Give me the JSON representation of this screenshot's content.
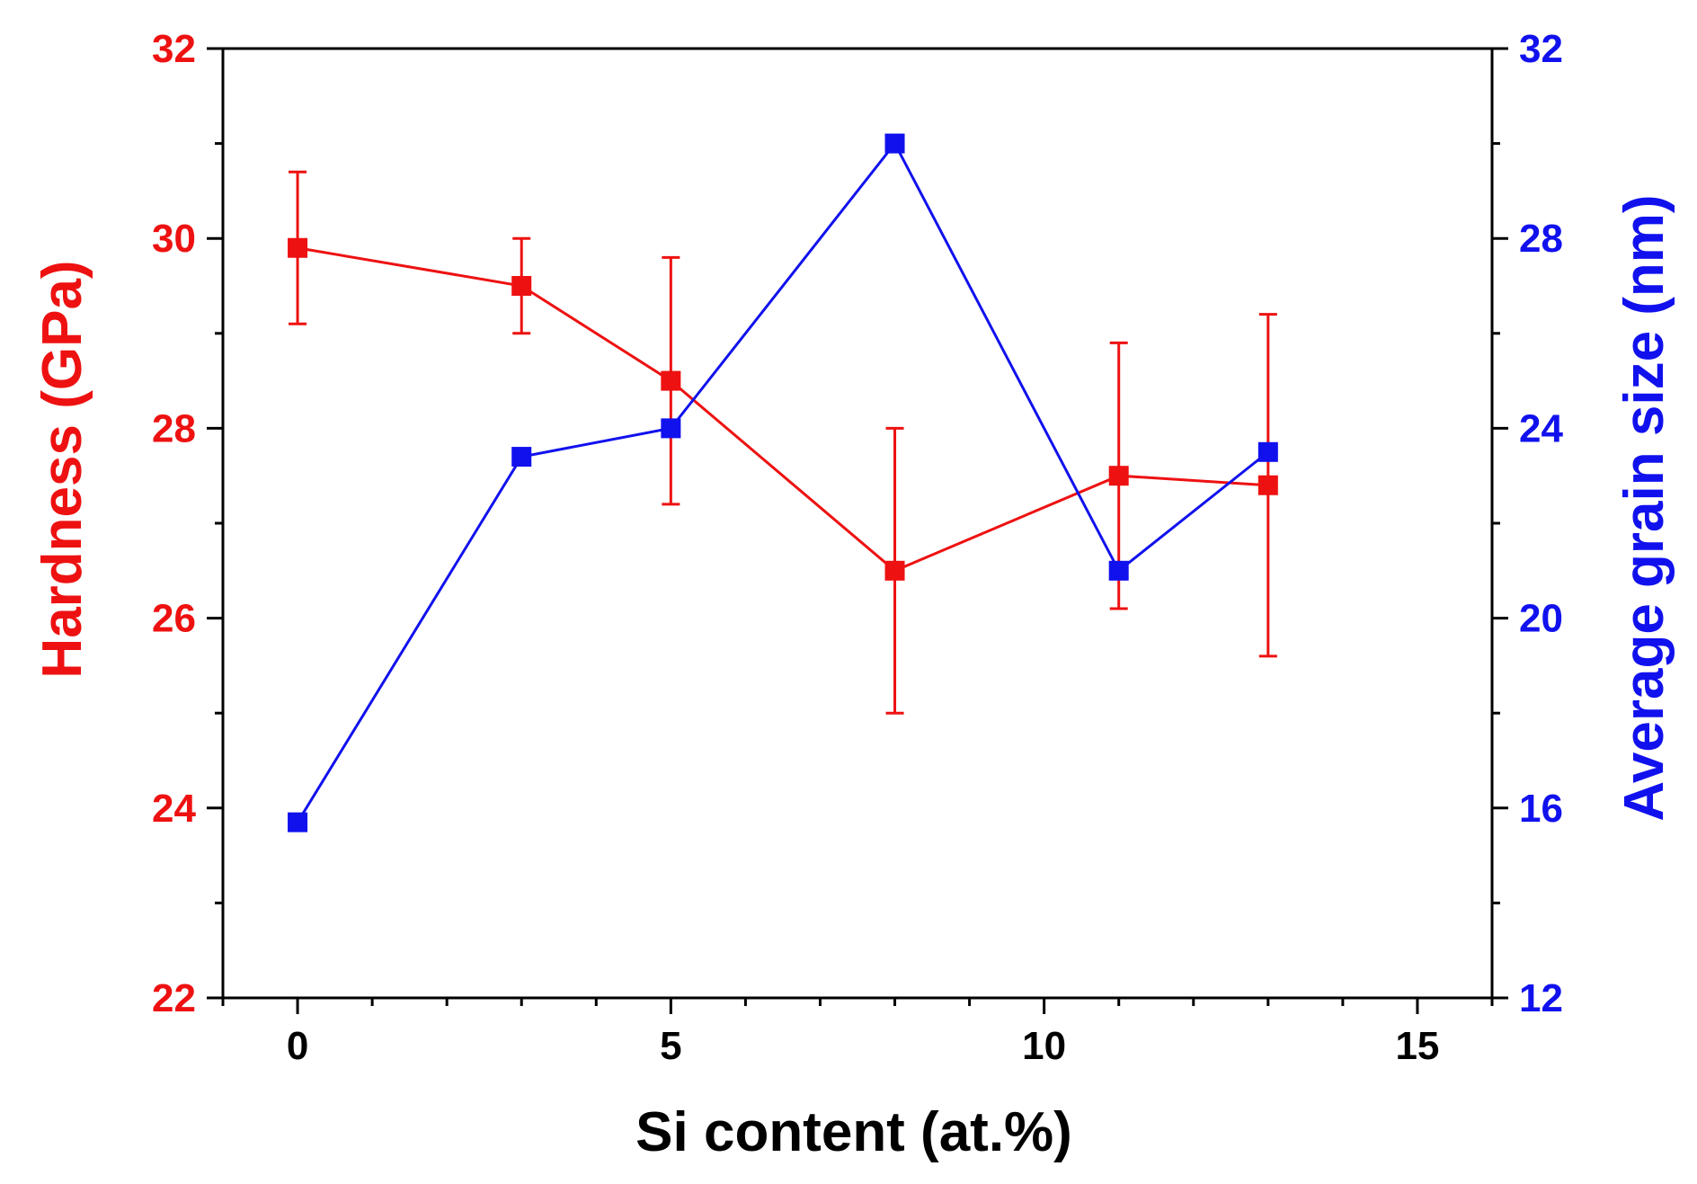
{
  "chart_data": {
    "type": "line",
    "xlabel": "Si content (at.%)",
    "ylabel_left": "Hardness (GPa)",
    "ylabel_right": "Average grain size (nm)",
    "xlim": [
      -1,
      16
    ],
    "ylim_left": [
      22,
      32
    ],
    "ylim_right": [
      12,
      32
    ],
    "x_ticks": [
      0,
      5,
      10,
      15
    ],
    "x_tick_labels": [
      "0",
      "5",
      "10",
      "15"
    ],
    "y_left_ticks": [
      22,
      24,
      26,
      28,
      30,
      32
    ],
    "y_left_tick_labels": [
      "22",
      "24",
      "26",
      "28",
      "30",
      "32"
    ],
    "y_right_ticks": [
      12,
      16,
      20,
      24,
      28,
      32
    ],
    "y_right_tick_labels": [
      "12",
      "16",
      "20",
      "24",
      "28",
      "32"
    ],
    "colors": {
      "hardness": "#ee1111",
      "grain": "#1111ee",
      "axis": "#000000"
    },
    "series": [
      {
        "name": "Hardness",
        "axis": "left",
        "color": "#ee1111",
        "x": [
          0,
          3,
          5,
          8,
          11,
          13
        ],
        "values": [
          29.9,
          29.5,
          28.5,
          26.5,
          27.5,
          27.4
        ],
        "error_low": [
          29.1,
          29.0,
          27.2,
          25.0,
          26.1,
          25.6
        ],
        "error_high": [
          30.7,
          30.0,
          29.8,
          28.0,
          28.9,
          29.2
        ]
      },
      {
        "name": "Average grain size",
        "axis": "right",
        "color": "#1111ee",
        "x": [
          0,
          3,
          5,
          8,
          11,
          13
        ],
        "values": [
          15.7,
          23.4,
          24.0,
          30.0,
          21.0,
          23.5
        ]
      }
    ]
  }
}
